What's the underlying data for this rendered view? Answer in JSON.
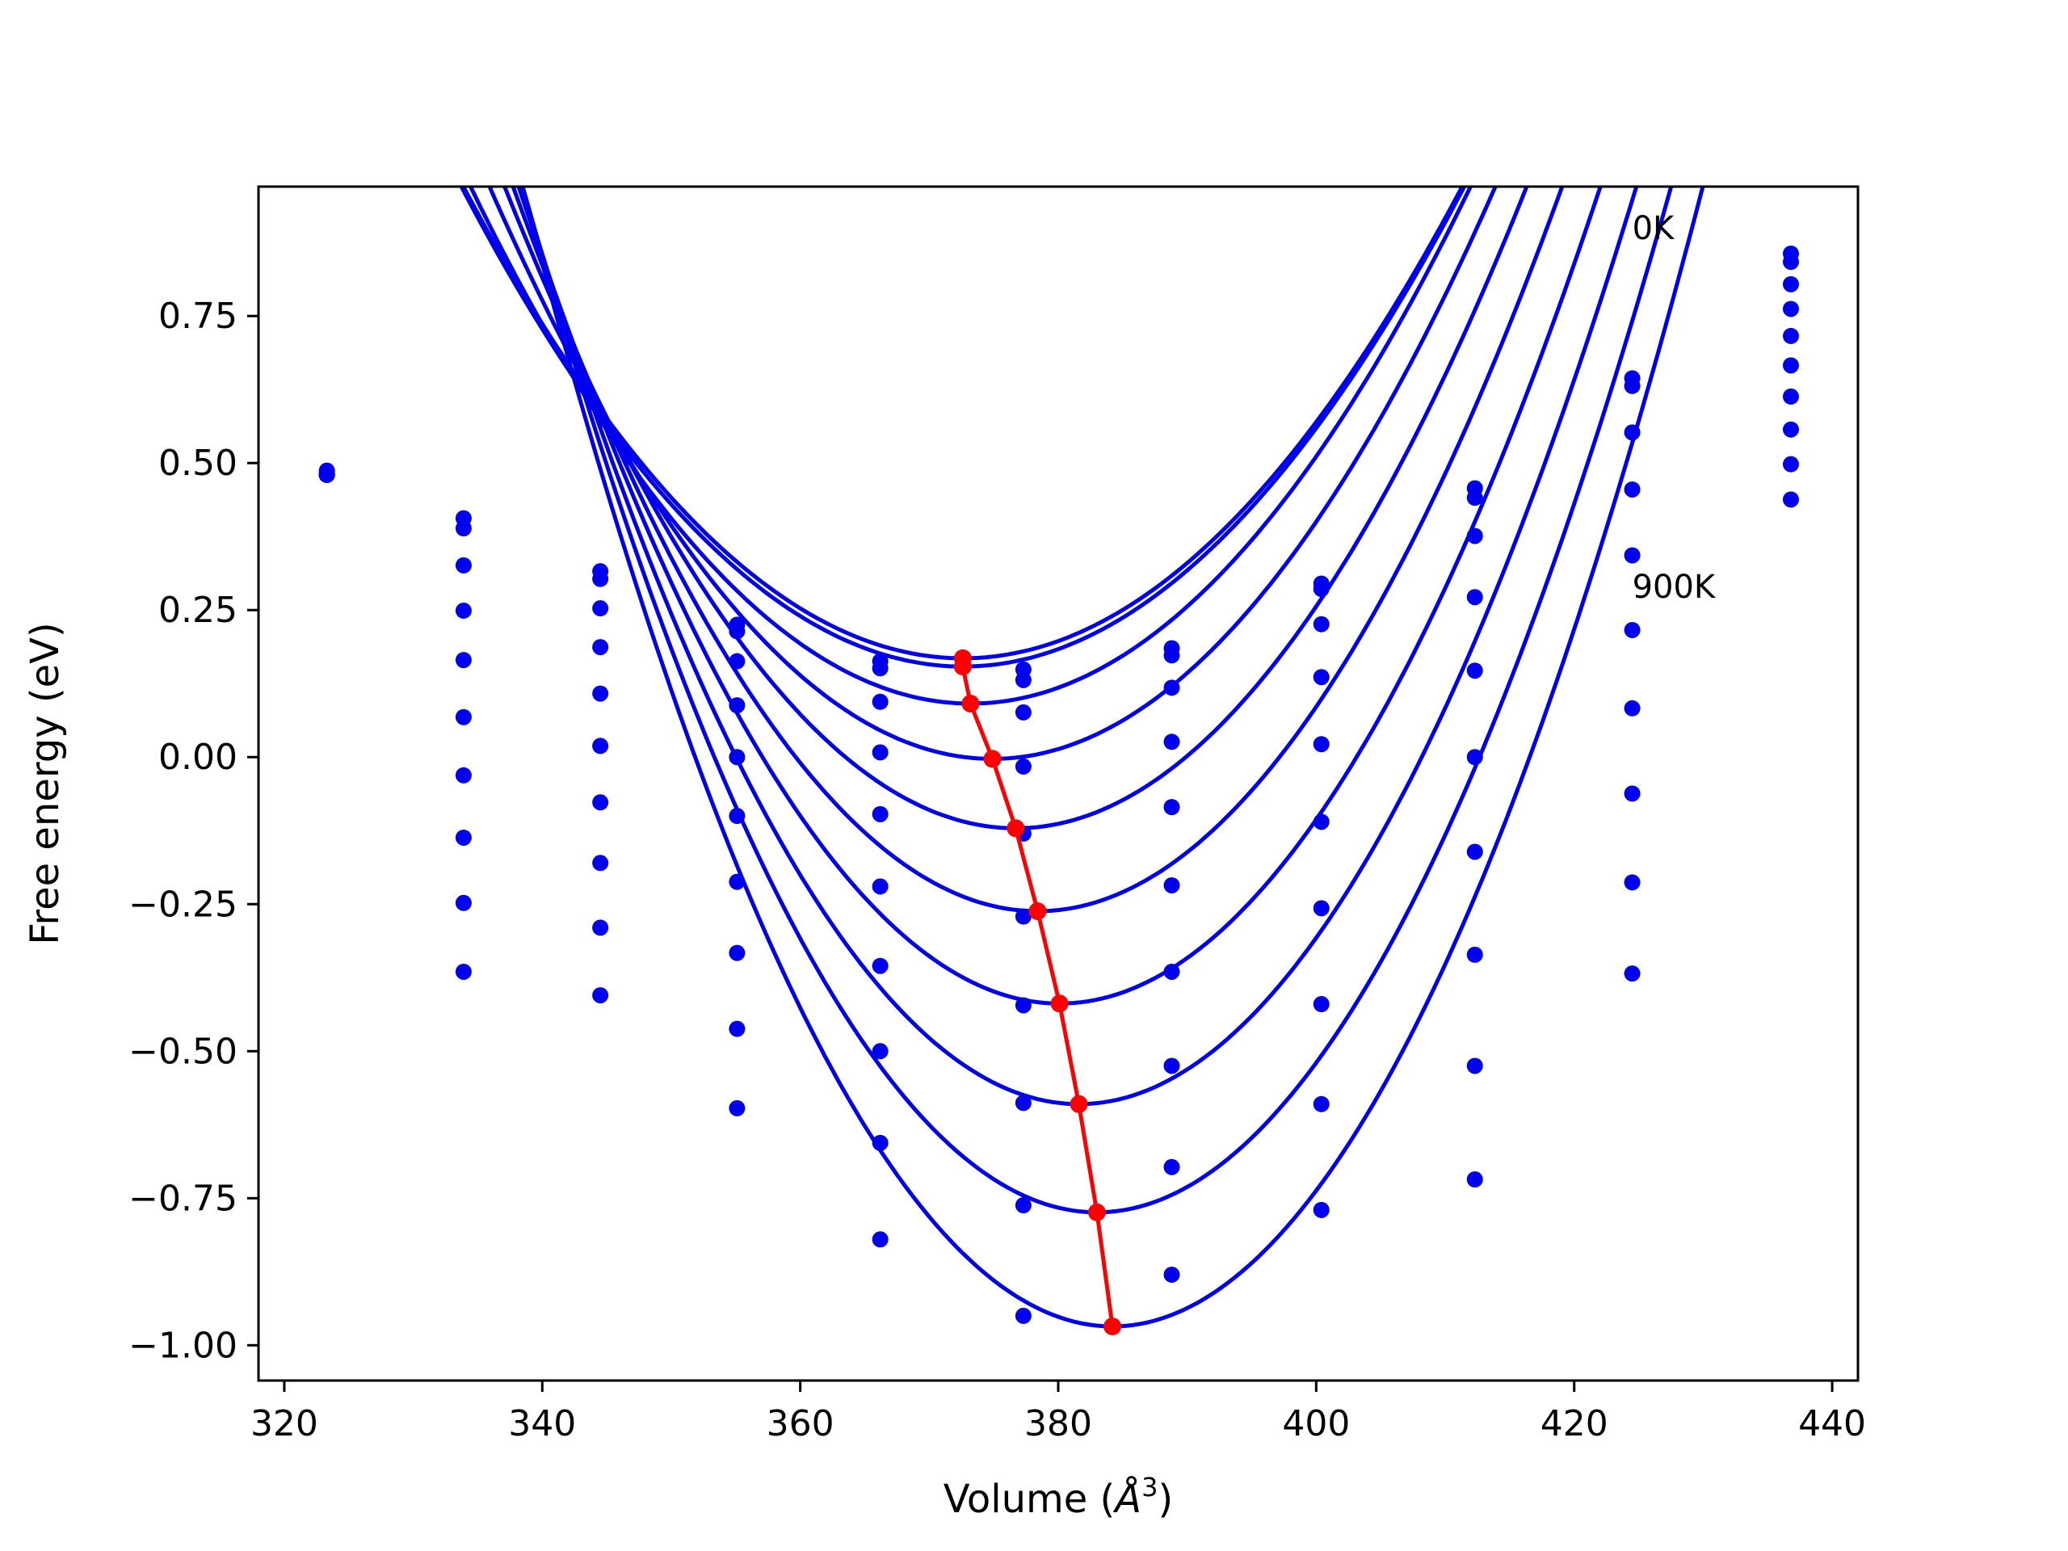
{
  "chart_data": {
    "type": "line",
    "title": "",
    "xlabel": "Volume (",
    "xlabel_unit": "Å",
    "xlabel_sup": "3",
    "xlabel_close": ")",
    "ylabel": "Free energy (eV)",
    "xlim": [
      318,
      442
    ],
    "ylim": [
      -1.06,
      0.97
    ],
    "xticks": [
      320,
      340,
      360,
      380,
      400,
      420,
      440
    ],
    "yticks": [
      -1.0,
      -0.75,
      -0.5,
      -0.25,
      0.0,
      0.25,
      0.5,
      0.75
    ],
    "ytick_labels": [
      "−1.00",
      "−0.75",
      "−0.50",
      "−0.25",
      "0.00",
      "0.25",
      "0.50",
      "0.75"
    ],
    "grid": false,
    "annotations": [
      {
        "text": "0K",
        "x": 424.5,
        "y": 0.9
      },
      {
        "text": "900K",
        "x": 424.5,
        "y": 0.29
      }
    ],
    "colors": {
      "fit": "#0000ee",
      "minimum": "#ff0000"
    },
    "volumes": [
      323.3,
      333.9,
      344.5,
      355.1,
      366.2,
      377.3,
      388.8,
      400.4,
      412.3,
      424.5,
      436.8
    ],
    "series": [
      {
        "energies": [
          0.487,
          0.406,
          0.316,
          0.225,
          0.163,
          0.149,
          0.185,
          0.295,
          0.457,
          0.644,
          0.856
        ],
        "fit": {
          "v0": 372.6,
          "e0": 0.168,
          "k": 0.000535
        }
      },
      {
        "energies": [
          0.483,
          0.389,
          0.303,
          0.214,
          0.151,
          0.131,
          0.173,
          0.286,
          0.441,
          0.631,
          0.842
        ],
        "fit": {
          "v0": 372.6,
          "e0": 0.154,
          "k": 0.00054
        }
      },
      {
        "energies": [
          0.48,
          0.326,
          0.253,
          0.163,
          0.094,
          0.076,
          0.118,
          0.226,
          0.376,
          0.552,
          0.804
        ],
        "fit": {
          "v0": 373.2,
          "e0": 0.091,
          "k": 0.000585
        }
      },
      {
        "energies": [
          0.48,
          0.249,
          0.187,
          0.088,
          0.008,
          -0.016,
          0.026,
          0.136,
          0.272,
          0.455,
          0.762
        ],
        "fit": {
          "v0": 374.9,
          "e0": -0.003,
          "k": 0.00064
        }
      },
      {
        "energies": [
          0.48,
          0.165,
          0.108,
          0.0,
          -0.097,
          -0.13,
          -0.085,
          0.022,
          0.147,
          0.343,
          0.716
        ],
        "fit": {
          "v0": 376.7,
          "e0": -0.121,
          "k": 0.000695
        }
      },
      {
        "energies": [
          0.48,
          0.068,
          0.019,
          -0.1,
          -0.22,
          -0.271,
          -0.218,
          -0.11,
          0.0,
          0.216,
          0.666
        ],
        "fit": {
          "v0": 378.4,
          "e0": -0.262,
          "k": 0.000745
        }
      },
      {
        "energies": [
          0.48,
          -0.031,
          -0.077,
          -0.212,
          -0.355,
          -0.422,
          -0.365,
          -0.257,
          -0.161,
          0.083,
          0.613
        ],
        "fit": {
          "v0": 380.1,
          "e0": -0.419,
          "k": 0.00079
        }
      },
      {
        "energies": [
          0.48,
          -0.137,
          -0.18,
          -0.333,
          -0.5,
          -0.588,
          -0.525,
          -0.42,
          -0.336,
          -0.062,
          0.557
        ],
        "fit": {
          "v0": 381.6,
          "e0": -0.59,
          "k": 0.000835
        }
      },
      {
        "energies": [
          0.48,
          -0.248,
          -0.29,
          -0.462,
          -0.656,
          -0.762,
          -0.697,
          -0.59,
          -0.525,
          -0.213,
          0.498
        ],
        "fit": {
          "v0": 383.0,
          "e0": -0.774,
          "k": 0.00088
        }
      },
      {
        "energies": [
          0.48,
          -0.365,
          -0.405,
          -0.597,
          -0.82,
          -0.95,
          -0.88,
          -0.77,
          -0.718,
          -0.368,
          0.438
        ],
        "fit": {
          "v0": 384.2,
          "e0": -0.968,
          "k": 0.000925
        }
      }
    ],
    "minimum_line": {
      "x": [
        372.6,
        372.6,
        373.2,
        374.9,
        376.7,
        378.4,
        380.1,
        381.6,
        383.0,
        384.2
      ],
      "y": [
        0.168,
        0.154,
        0.091,
        -0.003,
        -0.121,
        -0.262,
        -0.419,
        -0.59,
        -0.774,
        -0.968
      ]
    }
  }
}
